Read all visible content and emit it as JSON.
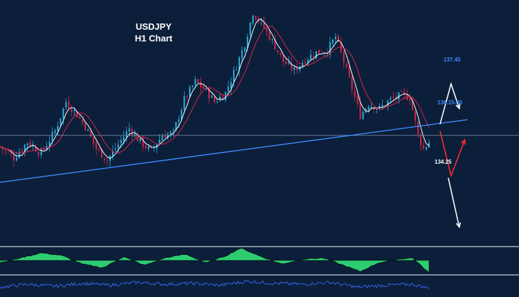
{
  "chart_data": {
    "type": "candlestick",
    "title": "USDJPY",
    "subtitle": "H1 Chart",
    "level_labels": {
      "upper_target": "137.45",
      "pivot_zone": "136.15-30",
      "lower_target": "134.25"
    },
    "close_path": [
      {
        "i": 0,
        "c": 135.85
      },
      {
        "i": 10,
        "c": 135.6
      },
      {
        "i": 20,
        "c": 135.95
      },
      {
        "i": 30,
        "c": 135.7
      },
      {
        "i": 40,
        "c": 136.2
      },
      {
        "i": 48,
        "c": 136.85
      },
      {
        "i": 55,
        "c": 136.6
      },
      {
        "i": 62,
        "c": 136.3
      },
      {
        "i": 70,
        "c": 135.8
      },
      {
        "i": 78,
        "c": 135.55
      },
      {
        "i": 86,
        "c": 135.9
      },
      {
        "i": 94,
        "c": 136.25
      },
      {
        "i": 102,
        "c": 135.95
      },
      {
        "i": 110,
        "c": 135.75
      },
      {
        "i": 118,
        "c": 136.1
      },
      {
        "i": 126,
        "c": 136.15
      },
      {
        "i": 134,
        "c": 136.9
      },
      {
        "i": 142,
        "c": 137.3
      },
      {
        "i": 150,
        "c": 137.1
      },
      {
        "i": 156,
        "c": 136.85
      },
      {
        "i": 164,
        "c": 137.05
      },
      {
        "i": 172,
        "c": 137.65
      },
      {
        "i": 178,
        "c": 138.15
      },
      {
        "i": 184,
        "c": 138.85
      },
      {
        "i": 190,
        "c": 138.6
      },
      {
        "i": 198,
        "c": 138.2
      },
      {
        "i": 206,
        "c": 137.75
      },
      {
        "i": 214,
        "c": 137.55
      },
      {
        "i": 222,
        "c": 137.8
      },
      {
        "i": 230,
        "c": 137.95
      },
      {
        "i": 238,
        "c": 138.0
      },
      {
        "i": 244,
        "c": 138.3
      },
      {
        "i": 250,
        "c": 137.75
      },
      {
        "i": 256,
        "c": 137.15
      },
      {
        "i": 262,
        "c": 136.55
      },
      {
        "i": 268,
        "c": 136.8
      },
      {
        "i": 276,
        "c": 136.7
      },
      {
        "i": 284,
        "c": 136.9
      },
      {
        "i": 292,
        "c": 137.0
      },
      {
        "i": 298,
        "c": 136.95
      },
      {
        "i": 304,
        "c": 136.1
      },
      {
        "i": 308,
        "c": 135.8
      },
      {
        "i": 312,
        "c": 135.95
      }
    ],
    "trendline": {
      "start": {
        "i": 0,
        "price": 135.05
      },
      "end": {
        "i": 340,
        "price": 136.45
      }
    },
    "horizontal_level": 136.1,
    "scenario_up": [
      {
        "i": 320,
        "price": 136.35
      },
      {
        "i": 328,
        "price": 137.25
      },
      {
        "i": 334,
        "price": 136.7
      }
    ],
    "scenario_down_bounce": [
      {
        "i": 320,
        "price": 136.2
      },
      {
        "i": 328,
        "price": 135.2
      },
      {
        "i": 338,
        "price": 136.0
      }
    ],
    "scenario_down": [
      {
        "i": 326,
        "price": 135.15
      },
      {
        "i": 334,
        "price": 134.05
      }
    ],
    "price_scale": {
      "min": 133.8,
      "max": 139.0
    },
    "oscillator": {
      "type": "histogram",
      "series": [
        {
          "i": 0,
          "v": -0.2
        },
        {
          "i": 15,
          "v": 0.2
        },
        {
          "i": 30,
          "v": 0.6
        },
        {
          "i": 45,
          "v": 0.4
        },
        {
          "i": 60,
          "v": -0.3
        },
        {
          "i": 75,
          "v": -0.6
        },
        {
          "i": 90,
          "v": 0.3
        },
        {
          "i": 105,
          "v": -0.4
        },
        {
          "i": 120,
          "v": 0.2
        },
        {
          "i": 135,
          "v": 0.5
        },
        {
          "i": 150,
          "v": -0.2
        },
        {
          "i": 165,
          "v": 0.4
        },
        {
          "i": 175,
          "v": 1.0
        },
        {
          "i": 190,
          "v": 0.3
        },
        {
          "i": 205,
          "v": -0.3
        },
        {
          "i": 220,
          "v": 0.1
        },
        {
          "i": 235,
          "v": 0.2
        },
        {
          "i": 250,
          "v": -0.4
        },
        {
          "i": 262,
          "v": -0.9
        },
        {
          "i": 275,
          "v": -0.2
        },
        {
          "i": 290,
          "v": 0.1
        },
        {
          "i": 300,
          "v": 0.2
        },
        {
          "i": 310,
          "v": -0.8
        }
      ]
    },
    "lower_indicator": {
      "type": "line",
      "series": [
        {
          "i": 0,
          "v": 0.3
        },
        {
          "i": 20,
          "v": 0.6
        },
        {
          "i": 40,
          "v": 0.4
        },
        {
          "i": 60,
          "v": 0.7
        },
        {
          "i": 80,
          "v": 0.5
        },
        {
          "i": 100,
          "v": 0.8
        },
        {
          "i": 120,
          "v": 0.6
        },
        {
          "i": 140,
          "v": 0.7
        },
        {
          "i": 160,
          "v": 0.5
        },
        {
          "i": 180,
          "v": 0.9
        },
        {
          "i": 200,
          "v": 0.7
        },
        {
          "i": 220,
          "v": 0.6
        },
        {
          "i": 240,
          "v": 0.8
        },
        {
          "i": 260,
          "v": 0.3
        },
        {
          "i": 280,
          "v": 0.5
        },
        {
          "i": 300,
          "v": 0.6
        },
        {
          "i": 312,
          "v": 0.2
        }
      ]
    },
    "colors": {
      "background": "#0b1f3a",
      "candle_up": "#2bb3e0",
      "candle_down": "#d9264a",
      "ma_fast": "#ffffff",
      "ma_slow": "#d9264a",
      "trendline": "#3d8bff",
      "horizontal_level": "#6b7f99",
      "scenario_up": "#ffffff",
      "scenario_bounce": "#ff2a2a",
      "scenario_down": "#ffffff",
      "label_blue": "#3d8bff",
      "label_white": "#ffffff",
      "osc_positive": "#2ecc71",
      "osc_negative": "#1a3a2a",
      "lower_line": "#3d6bff",
      "separator": "#a9b3c1"
    }
  }
}
